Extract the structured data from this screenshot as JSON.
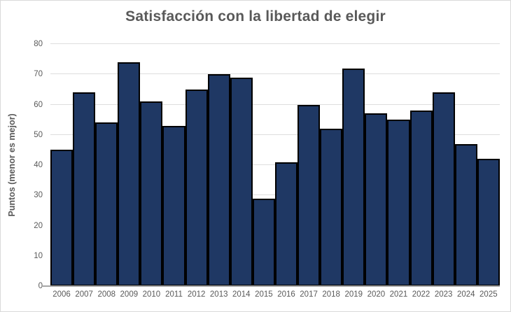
{
  "chart_data": {
    "type": "bar",
    "title": "Satisfacción con la libertad de elegir",
    "ylabel": "Puntos (menor es mejor)",
    "xlabel": "",
    "categories": [
      "2006",
      "2007",
      "2008",
      "2009",
      "2010",
      "2011",
      "2012",
      "2013",
      "2014",
      "2015",
      "2016",
      "2017",
      "2018",
      "2019",
      "2020",
      "2021",
      "2022",
      "2023",
      "2024",
      "2025"
    ],
    "values": [
      45,
      64,
      54,
      74,
      61,
      53,
      65,
      70,
      69,
      29,
      41,
      60,
      52,
      72,
      57,
      55,
      58,
      64,
      47,
      42
    ],
    "ylim": [
      0,
      80
    ],
    "yticks": [
      0,
      10,
      20,
      30,
      40,
      50,
      60,
      70,
      80
    ],
    "grid": true,
    "legend_position": "none",
    "colors": {
      "bar_fill": "#1f3864",
      "bar_border": "#000000",
      "gridline": "#dedede",
      "axis_line": "#a6a6a6",
      "text": "#595959",
      "background": "#ffffff",
      "chart_border": "#d9d9d9"
    }
  }
}
